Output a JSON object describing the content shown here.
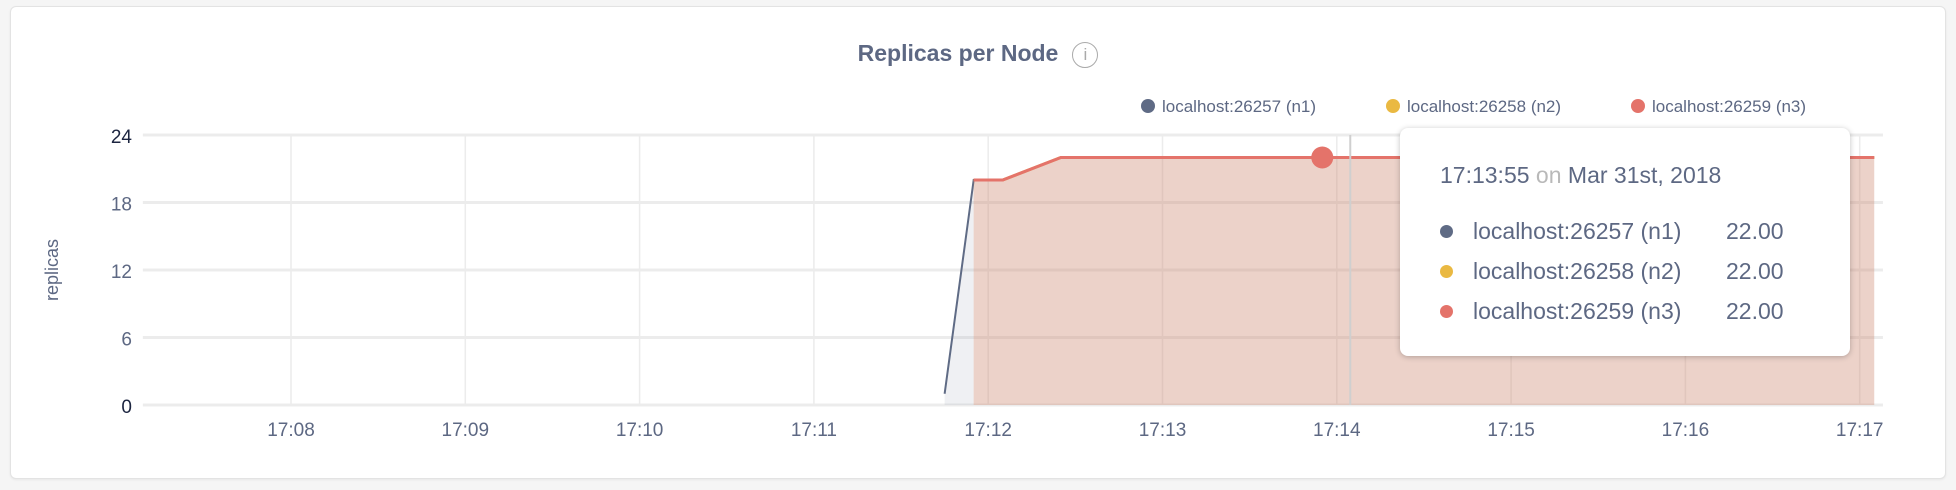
{
  "chart_data": {
    "type": "area",
    "title": "Replicas per Node",
    "ylabel": "replicas",
    "xlabel": "",
    "ylim": [
      0,
      24
    ],
    "yticks": [
      "0",
      "6",
      "12",
      "18",
      "24"
    ],
    "xlim": [
      "17:07:09",
      "17:17:08"
    ],
    "xticks": [
      "17:08",
      "17:09",
      "17:10",
      "17:11",
      "17:12",
      "17:13",
      "17:14",
      "17:15",
      "17:16",
      "17:17"
    ],
    "grid": true,
    "legend_position": "top-right",
    "series": [
      {
        "name": "localhost:26257 (n1)",
        "color": "#5f6b85",
        "x": [
          "17:11:45",
          "17:11:55",
          "17:12:05",
          "17:12:25",
          "17:17:05"
        ],
        "values": [
          1,
          20,
          20,
          22,
          22
        ]
      },
      {
        "name": "localhost:26258 (n2)",
        "color": "#eab942",
        "x": [
          "17:11:55",
          "17:12:05",
          "17:12:25",
          "17:17:05"
        ],
        "values": [
          20,
          20,
          22,
          22
        ]
      },
      {
        "name": "localhost:26259 (n3)",
        "color": "#e4736a",
        "x": [
          "17:11:55",
          "17:12:05",
          "17:12:25",
          "17:17:05"
        ],
        "values": [
          20,
          20,
          22,
          22
        ]
      }
    ]
  },
  "tooltip": {
    "time": "17:13:55",
    "on": "on",
    "date": "Mar 31st, 2018",
    "hover_x": "17:13:55",
    "rows": [
      {
        "name": "localhost:26257 (n1)",
        "value": "22.00",
        "color": "#5f6b85"
      },
      {
        "name": "localhost:26258 (n2)",
        "value": "22.00",
        "color": "#eab942"
      },
      {
        "name": "localhost:26259 (n3)",
        "value": "22.00",
        "color": "#e4736a"
      }
    ]
  }
}
